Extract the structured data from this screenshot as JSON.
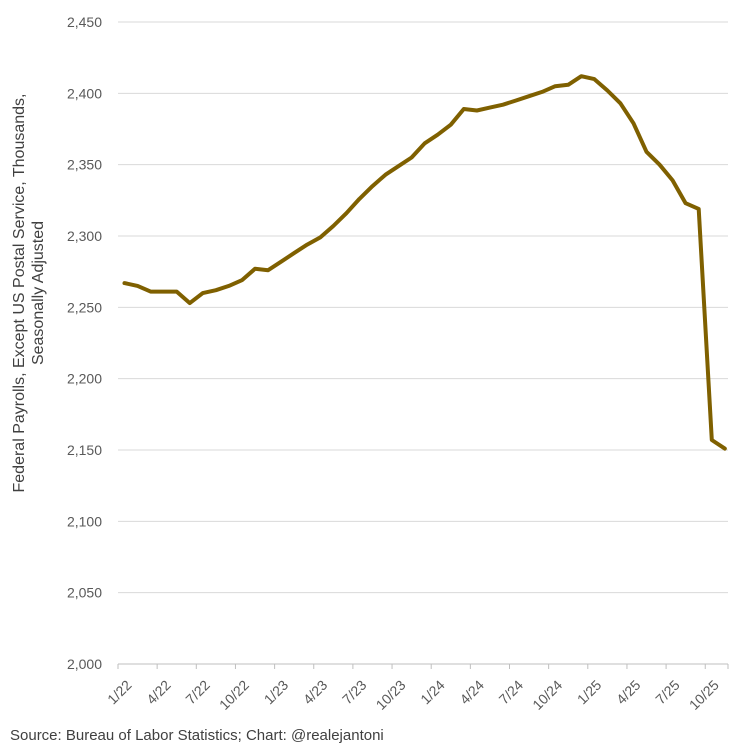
{
  "chart_data": {
    "type": "line",
    "title": "",
    "ylabel_lines": [
      "Federal Payrolls, Except US Postal Service, Thousands,",
      "Seasonally Adjusted"
    ],
    "xlabel": "",
    "ylim": [
      2000,
      2450
    ],
    "yticks": [
      2000,
      2050,
      2100,
      2150,
      2200,
      2250,
      2300,
      2350,
      2400,
      2450
    ],
    "ytick_labels": [
      "2,000",
      "2,050",
      "2,100",
      "2,150",
      "2,200",
      "2,250",
      "2,300",
      "2,350",
      "2,400",
      "2,450"
    ],
    "x_tick_labels": [
      "1/22",
      "4/22",
      "7/22",
      "10/22",
      "1/23",
      "4/23",
      "7/23",
      "10/23",
      "1/24",
      "4/24",
      "7/24",
      "10/24",
      "1/25",
      "4/25",
      "7/25",
      "10/25"
    ],
    "grid": true,
    "legend": "none",
    "line_color": "#7f6000",
    "series": [
      {
        "x": [
          "2022-01",
          "2022-02",
          "2022-03",
          "2022-04",
          "2022-05",
          "2022-06",
          "2022-07",
          "2022-08",
          "2022-09",
          "2022-10",
          "2022-11",
          "2022-12",
          "2023-01",
          "2023-02",
          "2023-03",
          "2023-04",
          "2023-05",
          "2023-06",
          "2023-07",
          "2023-08",
          "2023-09",
          "2023-10",
          "2023-11",
          "2023-12",
          "2024-01",
          "2024-02",
          "2024-03",
          "2024-04",
          "2024-05",
          "2024-06",
          "2024-07",
          "2024-08",
          "2024-09",
          "2024-10",
          "2024-11",
          "2024-12",
          "2025-01",
          "2025-02",
          "2025-03",
          "2025-04",
          "2025-05",
          "2025-06",
          "2025-07",
          "2025-08",
          "2025-09",
          "2025-10",
          "2025-11"
        ],
        "values": [
          2267,
          2265,
          2261,
          2261,
          2261,
          2253,
          2260,
          2262,
          2265,
          2269,
          2277,
          2276,
          2282,
          2288,
          2294,
          2299,
          2307,
          2316,
          2326,
          2335,
          2343,
          2349,
          2355,
          2365,
          2371,
          2378,
          2389,
          2388,
          2390,
          2392,
          2395,
          2398,
          2401,
          2405,
          2406,
          2412,
          2410,
          2402,
          2393,
          2379,
          2359,
          2350,
          2339,
          2323,
          2319,
          2157,
          2151
        ]
      }
    ]
  },
  "source_text": "Source: Bureau of Labor Statistics; Chart: @realejantoni"
}
